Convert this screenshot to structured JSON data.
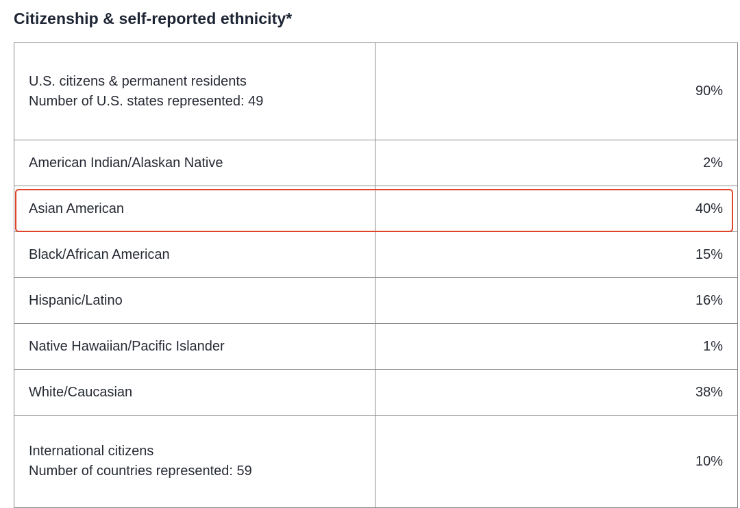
{
  "section": {
    "title": "Citizenship & self-reported ethnicity*"
  },
  "table": {
    "rows": [
      {
        "label_lines": [
          "U.S. citizens & permanent residents",
          "Number of U.S. states represented: 49"
        ],
        "value": "90%"
      },
      {
        "label_lines": [
          "American Indian/Alaskan Native"
        ],
        "value": "2%"
      },
      {
        "label_lines": [
          "Asian American"
        ],
        "value": "40%",
        "highlighted": true
      },
      {
        "label_lines": [
          "Black/African American"
        ],
        "value": "15%"
      },
      {
        "label_lines": [
          "Hispanic/Latino"
        ],
        "value": "16%"
      },
      {
        "label_lines": [
          "Native Hawaiian/Pacific Islander"
        ],
        "value": "1%"
      },
      {
        "label_lines": [
          "White/Caucasian"
        ],
        "value": "38%"
      },
      {
        "label_lines": [
          "International citizens",
          "Number of countries represented: 59"
        ],
        "value": "10%"
      }
    ]
  },
  "colors": {
    "highlight_border": "#e0452b",
    "table_border": "#8a8a8a",
    "title_text": "#1d2433"
  }
}
